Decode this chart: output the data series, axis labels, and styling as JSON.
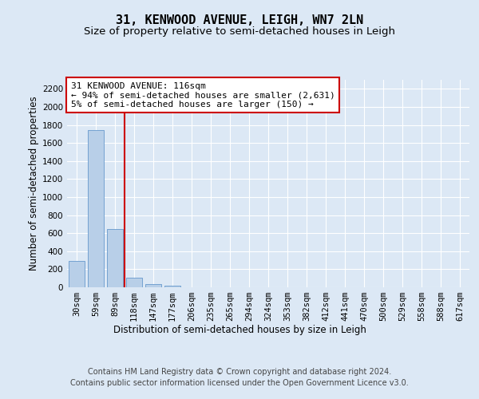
{
  "title": "31, KENWOOD AVENUE, LEIGH, WN7 2LN",
  "subtitle": "Size of property relative to semi-detached houses in Leigh",
  "xlabel": "Distribution of semi-detached houses by size in Leigh",
  "ylabel": "Number of semi-detached properties",
  "categories": [
    "30sqm",
    "59sqm",
    "89sqm",
    "118sqm",
    "147sqm",
    "177sqm",
    "206sqm",
    "235sqm",
    "265sqm",
    "294sqm",
    "324sqm",
    "353sqm",
    "382sqm",
    "412sqm",
    "441sqm",
    "470sqm",
    "500sqm",
    "529sqm",
    "558sqm",
    "588sqm",
    "617sqm"
  ],
  "values": [
    290,
    1740,
    645,
    110,
    35,
    20,
    0,
    0,
    0,
    0,
    0,
    0,
    0,
    0,
    0,
    0,
    0,
    0,
    0,
    0,
    0
  ],
  "bar_color": "#b8cfe8",
  "bar_edge_color": "#6699cc",
  "vline_x": 2.5,
  "vline_color": "#cc0000",
  "annotation_text": "31 KENWOOD AVENUE: 116sqm\n← 94% of semi-detached houses are smaller (2,631)\n5% of semi-detached houses are larger (150) →",
  "annotation_box_color": "#ffffff",
  "annotation_box_edge": "#cc0000",
  "ylim": [
    0,
    2300
  ],
  "yticks": [
    0,
    200,
    400,
    600,
    800,
    1000,
    1200,
    1400,
    1600,
    1800,
    2000,
    2200
  ],
  "footer": "Contains HM Land Registry data © Crown copyright and database right 2024.\nContains public sector information licensed under the Open Government Licence v3.0.",
  "background_color": "#dce8f5",
  "plot_bg_color": "#dce8f5",
  "grid_color": "#ffffff",
  "title_fontsize": 11,
  "subtitle_fontsize": 9.5,
  "axis_label_fontsize": 8.5,
  "tick_fontsize": 7.5,
  "footer_fontsize": 7,
  "annotation_fontsize": 8
}
